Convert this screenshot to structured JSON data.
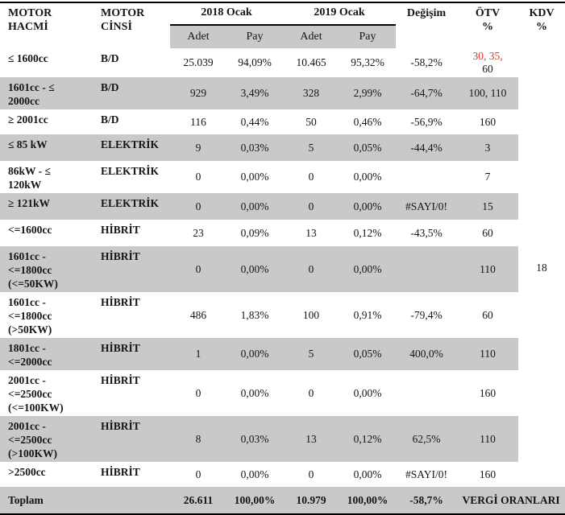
{
  "colors": {
    "shade_gray": "#c9c9c9",
    "red_text": "#e23327",
    "border": "#000000"
  },
  "header": {
    "motor_hacmi": "MOTOR HACMİ",
    "motor_cinsi": "MOTOR CİNSİ",
    "group_2018": "2018 Ocak",
    "group_2019": "2019 Ocak",
    "sub_adet_2018": "Adet",
    "sub_pay_2018": "Pay",
    "sub_adet_2019": "Adet",
    "sub_pay_2019": "Pay",
    "degisim": "Değişim",
    "otv": "ÖTV",
    "kdv": "KDV",
    "percent": "%"
  },
  "kdv_value": "18",
  "rows": [
    {
      "hacim": "≤ 1600cc",
      "cins": "B/D",
      "adet2018": "25.039",
      "pay2018": "94,09%",
      "adet2019": "10.465",
      "pay2019": "95,32%",
      "degisim": "-58,2%",
      "otv_red": "30, 35,",
      "otv_rest": "60"
    },
    {
      "hacim": "1601cc - ≤ 2000cc",
      "cins": "B/D",
      "adet2018": "929",
      "pay2018": "3,49%",
      "adet2019": "328",
      "pay2019": "2,99%",
      "degisim": "-64,7%",
      "otv": "100, 110"
    },
    {
      "hacim": "≥ 2001cc",
      "cins": "B/D",
      "adet2018": "116",
      "pay2018": "0,44%",
      "adet2019": "50",
      "pay2019": "0,46%",
      "degisim": "-56,9%",
      "otv": "160"
    },
    {
      "hacim": "≤ 85 kW",
      "cins": "ELEKTRİK",
      "adet2018": "9",
      "pay2018": "0,03%",
      "adet2019": "5",
      "pay2019": "0,05%",
      "degisim": "-44,4%",
      "otv": "3"
    },
    {
      "hacim": "86kW - ≤ 120kW",
      "cins": "ELEKTRİK",
      "adet2018": "0",
      "pay2018": "0,00%",
      "adet2019": "0",
      "pay2019": "0,00%",
      "degisim": "",
      "otv": "7"
    },
    {
      "hacim": "≥ 121kW",
      "cins": "ELEKTRİK",
      "adet2018": "0",
      "pay2018": "0,00%",
      "adet2019": "0",
      "pay2019": "0,00%",
      "degisim": "#SAYI/0!",
      "otv": "15"
    },
    {
      "hacim": "<=1600cc",
      "cins": "HİBRİT",
      "adet2018": "23",
      "pay2018": "0,09%",
      "adet2019": "13",
      "pay2019": "0,12%",
      "degisim": "-43,5%",
      "otv": "60"
    },
    {
      "hacim": "1601cc - <=1800cc (<=50KW)",
      "cins": "HİBRİT",
      "adet2018": "0",
      "pay2018": "0,00%",
      "adet2019": "0",
      "pay2019": "0,00%",
      "degisim": "",
      "otv": "110"
    },
    {
      "hacim": "1601cc - <=1800cc (>50KW)",
      "cins": "HİBRİT",
      "adet2018": "486",
      "pay2018": "1,83%",
      "adet2019": "100",
      "pay2019": "0,91%",
      "degisim": "-79,4%",
      "otv": "60"
    },
    {
      "hacim": "1801cc - <=2000cc",
      "cins": "HİBRİT",
      "adet2018": "1",
      "pay2018": "0,00%",
      "adet2019": "5",
      "pay2019": "0,05%",
      "degisim": "400,0%",
      "otv": "110"
    },
    {
      "hacim": "2001cc - <=2500cc (<=100KW)",
      "cins": "HİBRİT",
      "adet2018": "0",
      "pay2018": "0,00%",
      "adet2019": "0",
      "pay2019": "0,00%",
      "degisim": "",
      "otv": "160"
    },
    {
      "hacim": "2001cc - <=2500cc (>100KW)",
      "cins": "HİBRİT",
      "adet2018": "8",
      "pay2018": "0,03%",
      "adet2019": "13",
      "pay2019": "0,12%",
      "degisim": "62,5%",
      "otv": "110"
    },
    {
      "hacim": ">2500cc",
      "cins": "HİBRİT",
      "adet2018": "0",
      "pay2018": "0,00%",
      "adet2019": "0",
      "pay2019": "0,00%",
      "degisim": "#SAYI/0!",
      "otv": "160"
    }
  ],
  "total": {
    "label": "Toplam",
    "adet2018": "26.611",
    "pay2018": "100,00%",
    "adet2019": "10.979",
    "pay2019": "100,00%",
    "degisim": "-58,7%",
    "vergi": "VERGİ ORANLARI"
  }
}
